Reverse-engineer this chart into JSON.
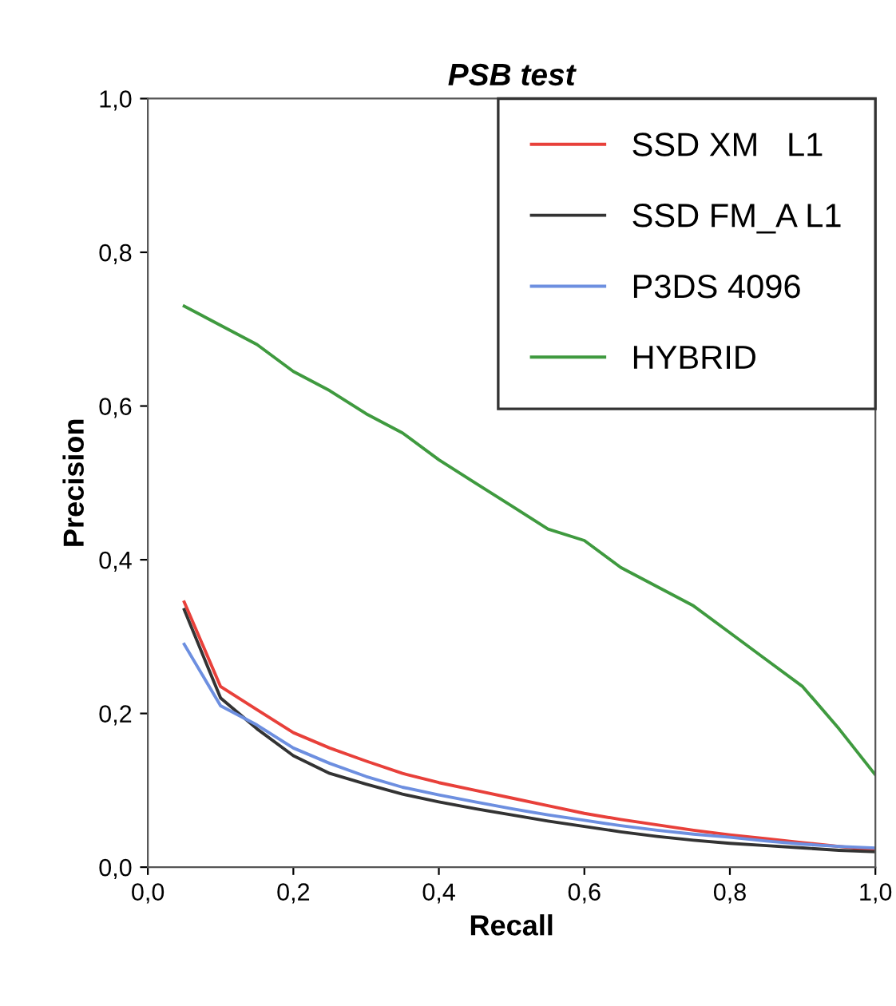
{
  "chart_data": {
    "type": "line",
    "title": "PSB test",
    "xlabel": "Recall",
    "ylabel": "Precision",
    "x": [
      0.05,
      0.1,
      0.15,
      0.2,
      0.25,
      0.3,
      0.35,
      0.4,
      0.45,
      0.5,
      0.55,
      0.6,
      0.65,
      0.7,
      0.75,
      0.8,
      0.85,
      0.9,
      0.95,
      1.0
    ],
    "series": [
      {
        "name": "SSD XM   L1",
        "color": "#e8403a",
        "values": [
          0.345,
          0.235,
          0.205,
          0.175,
          0.155,
          0.138,
          0.122,
          0.11,
          0.1,
          0.09,
          0.08,
          0.07,
          0.062,
          0.055,
          0.048,
          0.042,
          0.037,
          0.032,
          0.027,
          0.022
        ]
      },
      {
        "name": "SSD FM_A L1",
        "color": "#333333",
        "values": [
          0.335,
          0.22,
          0.18,
          0.145,
          0.122,
          0.108,
          0.095,
          0.085,
          0.076,
          0.068,
          0.06,
          0.053,
          0.046,
          0.04,
          0.035,
          0.031,
          0.028,
          0.025,
          0.022,
          0.02
        ]
      },
      {
        "name": "P3DS 4096",
        "color": "#6d8fe0",
        "values": [
          0.29,
          0.21,
          0.185,
          0.155,
          0.135,
          0.118,
          0.104,
          0.094,
          0.085,
          0.076,
          0.068,
          0.061,
          0.054,
          0.048,
          0.043,
          0.039,
          0.034,
          0.03,
          0.027,
          0.025
        ]
      },
      {
        "name": "HYBRID",
        "color": "#3f9a3f",
        "values": [
          0.73,
          0.705,
          0.68,
          0.645,
          0.62,
          0.59,
          0.565,
          0.53,
          0.5,
          0.47,
          0.44,
          0.425,
          0.39,
          0.365,
          0.34,
          0.305,
          0.27,
          0.235,
          0.18,
          0.12
        ]
      }
    ],
    "xlim": [
      0,
      1
    ],
    "ylim": [
      0,
      1
    ],
    "xticks": [
      {
        "value": 0,
        "label": "0,0"
      },
      {
        "value": 0.2,
        "label": "0,2"
      },
      {
        "value": 0.4,
        "label": "0,4"
      },
      {
        "value": 0.6,
        "label": "0,6"
      },
      {
        "value": 0.8,
        "label": "0,8"
      },
      {
        "value": 1,
        "label": "1,0"
      }
    ],
    "yticks": [
      {
        "value": 0,
        "label": "0,0"
      },
      {
        "value": 0.2,
        "label": "0,2"
      },
      {
        "value": 0.4,
        "label": "0,4"
      },
      {
        "value": 0.6,
        "label": "0,6"
      },
      {
        "value": 0.8,
        "label": "0,8"
      },
      {
        "value": 1,
        "label": "1,0"
      }
    ],
    "legend": "top right",
    "grid": false,
    "marker": "none",
    "line_style": "solid"
  }
}
